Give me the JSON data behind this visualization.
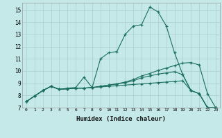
{
  "xlabel": "Humidex (Indice chaleur)",
  "background_color": "#c5e8e8",
  "grid_color": "#aacece",
  "line_color": "#1a6e60",
  "xlim": [
    -0.5,
    23.5
  ],
  "ylim": [
    7,
    15.6
  ],
  "xticks": [
    0,
    1,
    2,
    3,
    4,
    5,
    6,
    7,
    8,
    9,
    10,
    11,
    12,
    13,
    14,
    15,
    16,
    17,
    18,
    19,
    20,
    21,
    22,
    23
  ],
  "yticks": [
    7,
    8,
    9,
    10,
    11,
    12,
    13,
    14,
    15
  ],
  "series": [
    [
      7.5,
      7.95,
      8.4,
      8.75,
      8.5,
      8.6,
      8.65,
      9.5,
      8.65,
      11.0,
      11.5,
      11.6,
      13.0,
      13.7,
      13.8,
      15.25,
      14.85,
      13.7,
      11.5,
      9.7,
      8.4,
      8.15,
      7.0,
      7.0
    ],
    [
      7.5,
      7.95,
      8.4,
      8.75,
      8.5,
      8.55,
      8.6,
      8.6,
      8.65,
      8.75,
      8.85,
      8.95,
      9.1,
      9.3,
      9.6,
      9.8,
      10.05,
      10.25,
      10.45,
      10.65,
      10.7,
      10.5,
      8.15,
      7.0
    ],
    [
      7.5,
      7.95,
      8.4,
      8.75,
      8.5,
      8.55,
      8.6,
      8.6,
      8.65,
      8.75,
      8.85,
      8.95,
      9.05,
      9.2,
      9.45,
      9.6,
      9.75,
      9.85,
      9.95,
      9.7,
      8.4,
      8.15,
      7.0,
      7.0
    ],
    [
      7.5,
      7.95,
      8.4,
      8.75,
      8.5,
      8.55,
      8.6,
      8.6,
      8.65,
      8.7,
      8.75,
      8.8,
      8.85,
      8.9,
      8.95,
      9.0,
      9.05,
      9.1,
      9.15,
      9.2,
      8.4,
      8.15,
      7.0,
      7.0
    ]
  ]
}
